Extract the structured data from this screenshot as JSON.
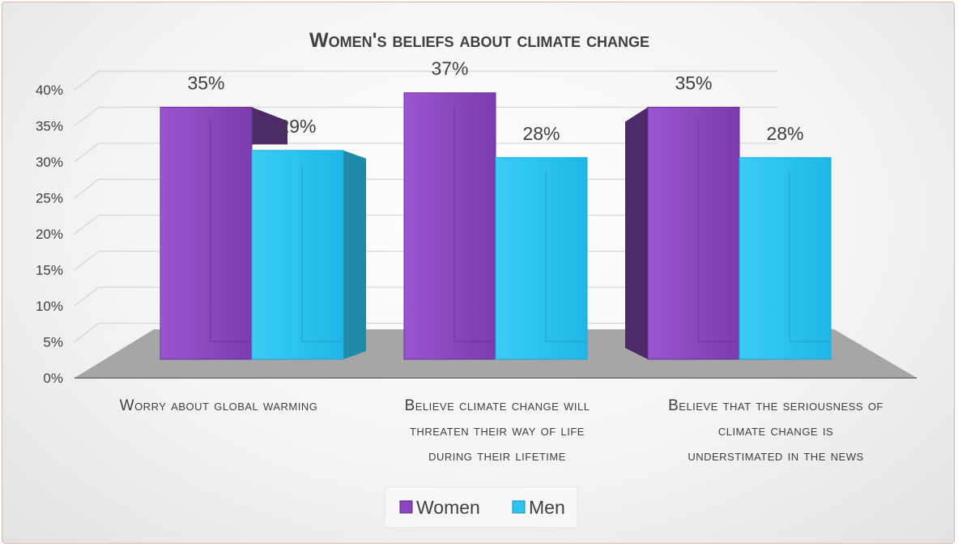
{
  "chart_data": {
    "type": "bar",
    "title": "Women's beliefs about climate change",
    "categories": [
      [
        "Worry about global warming"
      ],
      [
        "Believe climate change will",
        "threaten their way of life",
        "during their lifetime"
      ],
      [
        "Believe that the seriousness of",
        "climate change is",
        "understimated in the news"
      ]
    ],
    "series": [
      {
        "name": "Women",
        "values": [
          35,
          37,
          35
        ],
        "labels": [
          "35%",
          "37%",
          "35%"
        ]
      },
      {
        "name": "Men",
        "values": [
          29,
          28,
          28
        ],
        "labels": [
          "29%",
          "28%",
          "28%"
        ]
      }
    ],
    "yticks": [
      "0%",
      "5%",
      "10%",
      "15%",
      "20%",
      "25%",
      "30%",
      "35%",
      "40%"
    ],
    "ylim": [
      0,
      40
    ],
    "grid": true,
    "legend_position": "bottom",
    "colors": {
      "women": "#8a46bf",
      "women_dark": "#4b2a66",
      "men": "#2ec4f2",
      "men_dark": "#1f8aa8",
      "floor": "#a6a6a6",
      "grid": "#d6d6d6",
      "text": "#404040"
    }
  }
}
